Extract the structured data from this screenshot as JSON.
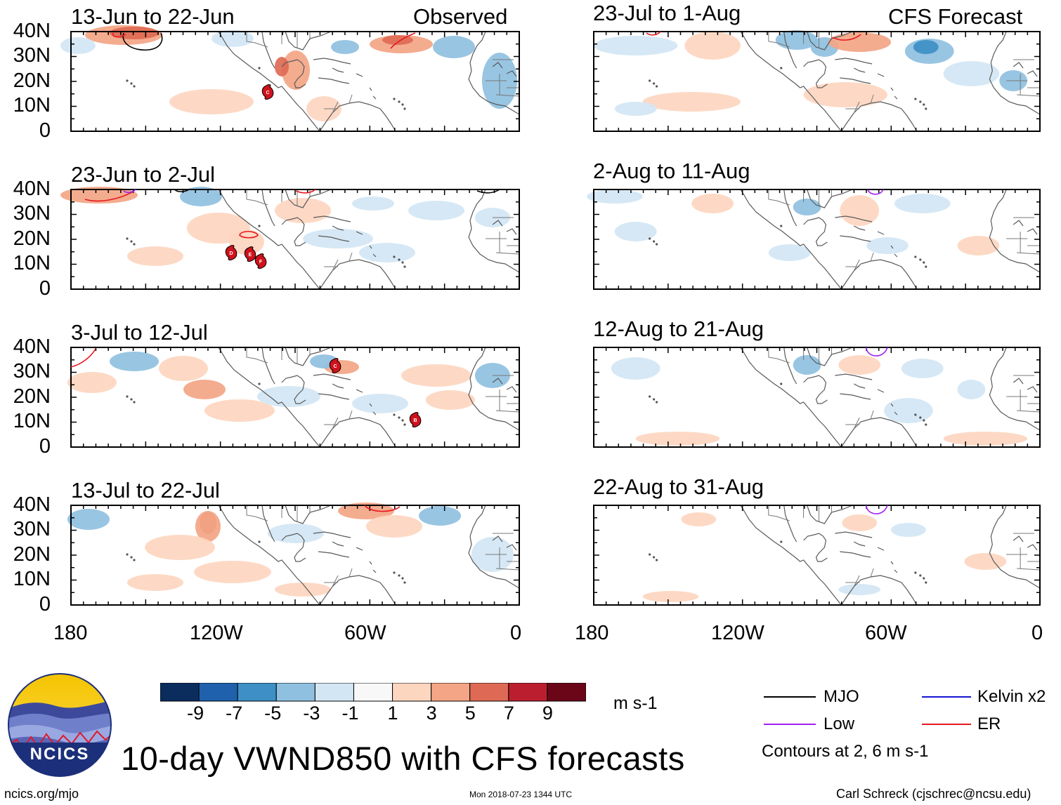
{
  "headers": {
    "left": "Observed",
    "right": "CFS Forecast"
  },
  "panels_left": [
    {
      "title": "13-Jun to 22-Jun"
    },
    {
      "title": "23-Jun to 2-Jul"
    },
    {
      "title": "3-Jul to 12-Jul"
    },
    {
      "title": "13-Jul to 22-Jul"
    }
  ],
  "panels_right": [
    {
      "title": "23-Jul to 1-Aug"
    },
    {
      "title": "2-Aug to 11-Aug"
    },
    {
      "title": "12-Aug to 21-Aug"
    },
    {
      "title": "22-Aug to 31-Aug"
    }
  ],
  "lat_labels": [
    "40N",
    "30N",
    "20N",
    "10N",
    "0"
  ],
  "lon_labels": [
    "180",
    "120W",
    "60W",
    "0"
  ],
  "colorbar": {
    "colors": [
      "#0b2d5e",
      "#1f61ad",
      "#3d8fc6",
      "#8fc0e0",
      "#d3e6f4",
      "#f8f8f8",
      "#fdd6c0",
      "#f3a585",
      "#de6a55",
      "#bb1f2f",
      "#6a0618"
    ],
    "labels": [
      "-9",
      "-7",
      "-5",
      "-3",
      "-1",
      "1",
      "3",
      "5",
      "7",
      "9"
    ],
    "units": "m s-1"
  },
  "legend": {
    "items": [
      {
        "label": "MJO",
        "color": "#000000"
      },
      {
        "label": "Kelvin x2",
        "color": "#1414d2"
      },
      {
        "label": "Low",
        "color": "#a020f0"
      },
      {
        "label": "ER",
        "color": "#e8171f"
      }
    ],
    "note": "Contours at 2, 6 m s-1"
  },
  "title": "10-day VWND850 with CFS forecasts",
  "logo_text": "NCICS",
  "footer": {
    "left": "ncics.org/mjo",
    "center": "Mon 2018-07-23 1344 UTC",
    "right": "Carl Schreck (cjschrec@ncsu.edu)"
  },
  "storms": [
    {
      "panel": 0,
      "label": "C"
    },
    {
      "panel": 1,
      "label": "D"
    },
    {
      "panel": 1,
      "label": "E"
    },
    {
      "panel": 1,
      "label": "F"
    },
    {
      "panel": 2,
      "label": "C"
    },
    {
      "panel": 2,
      "label": "B"
    }
  ]
}
